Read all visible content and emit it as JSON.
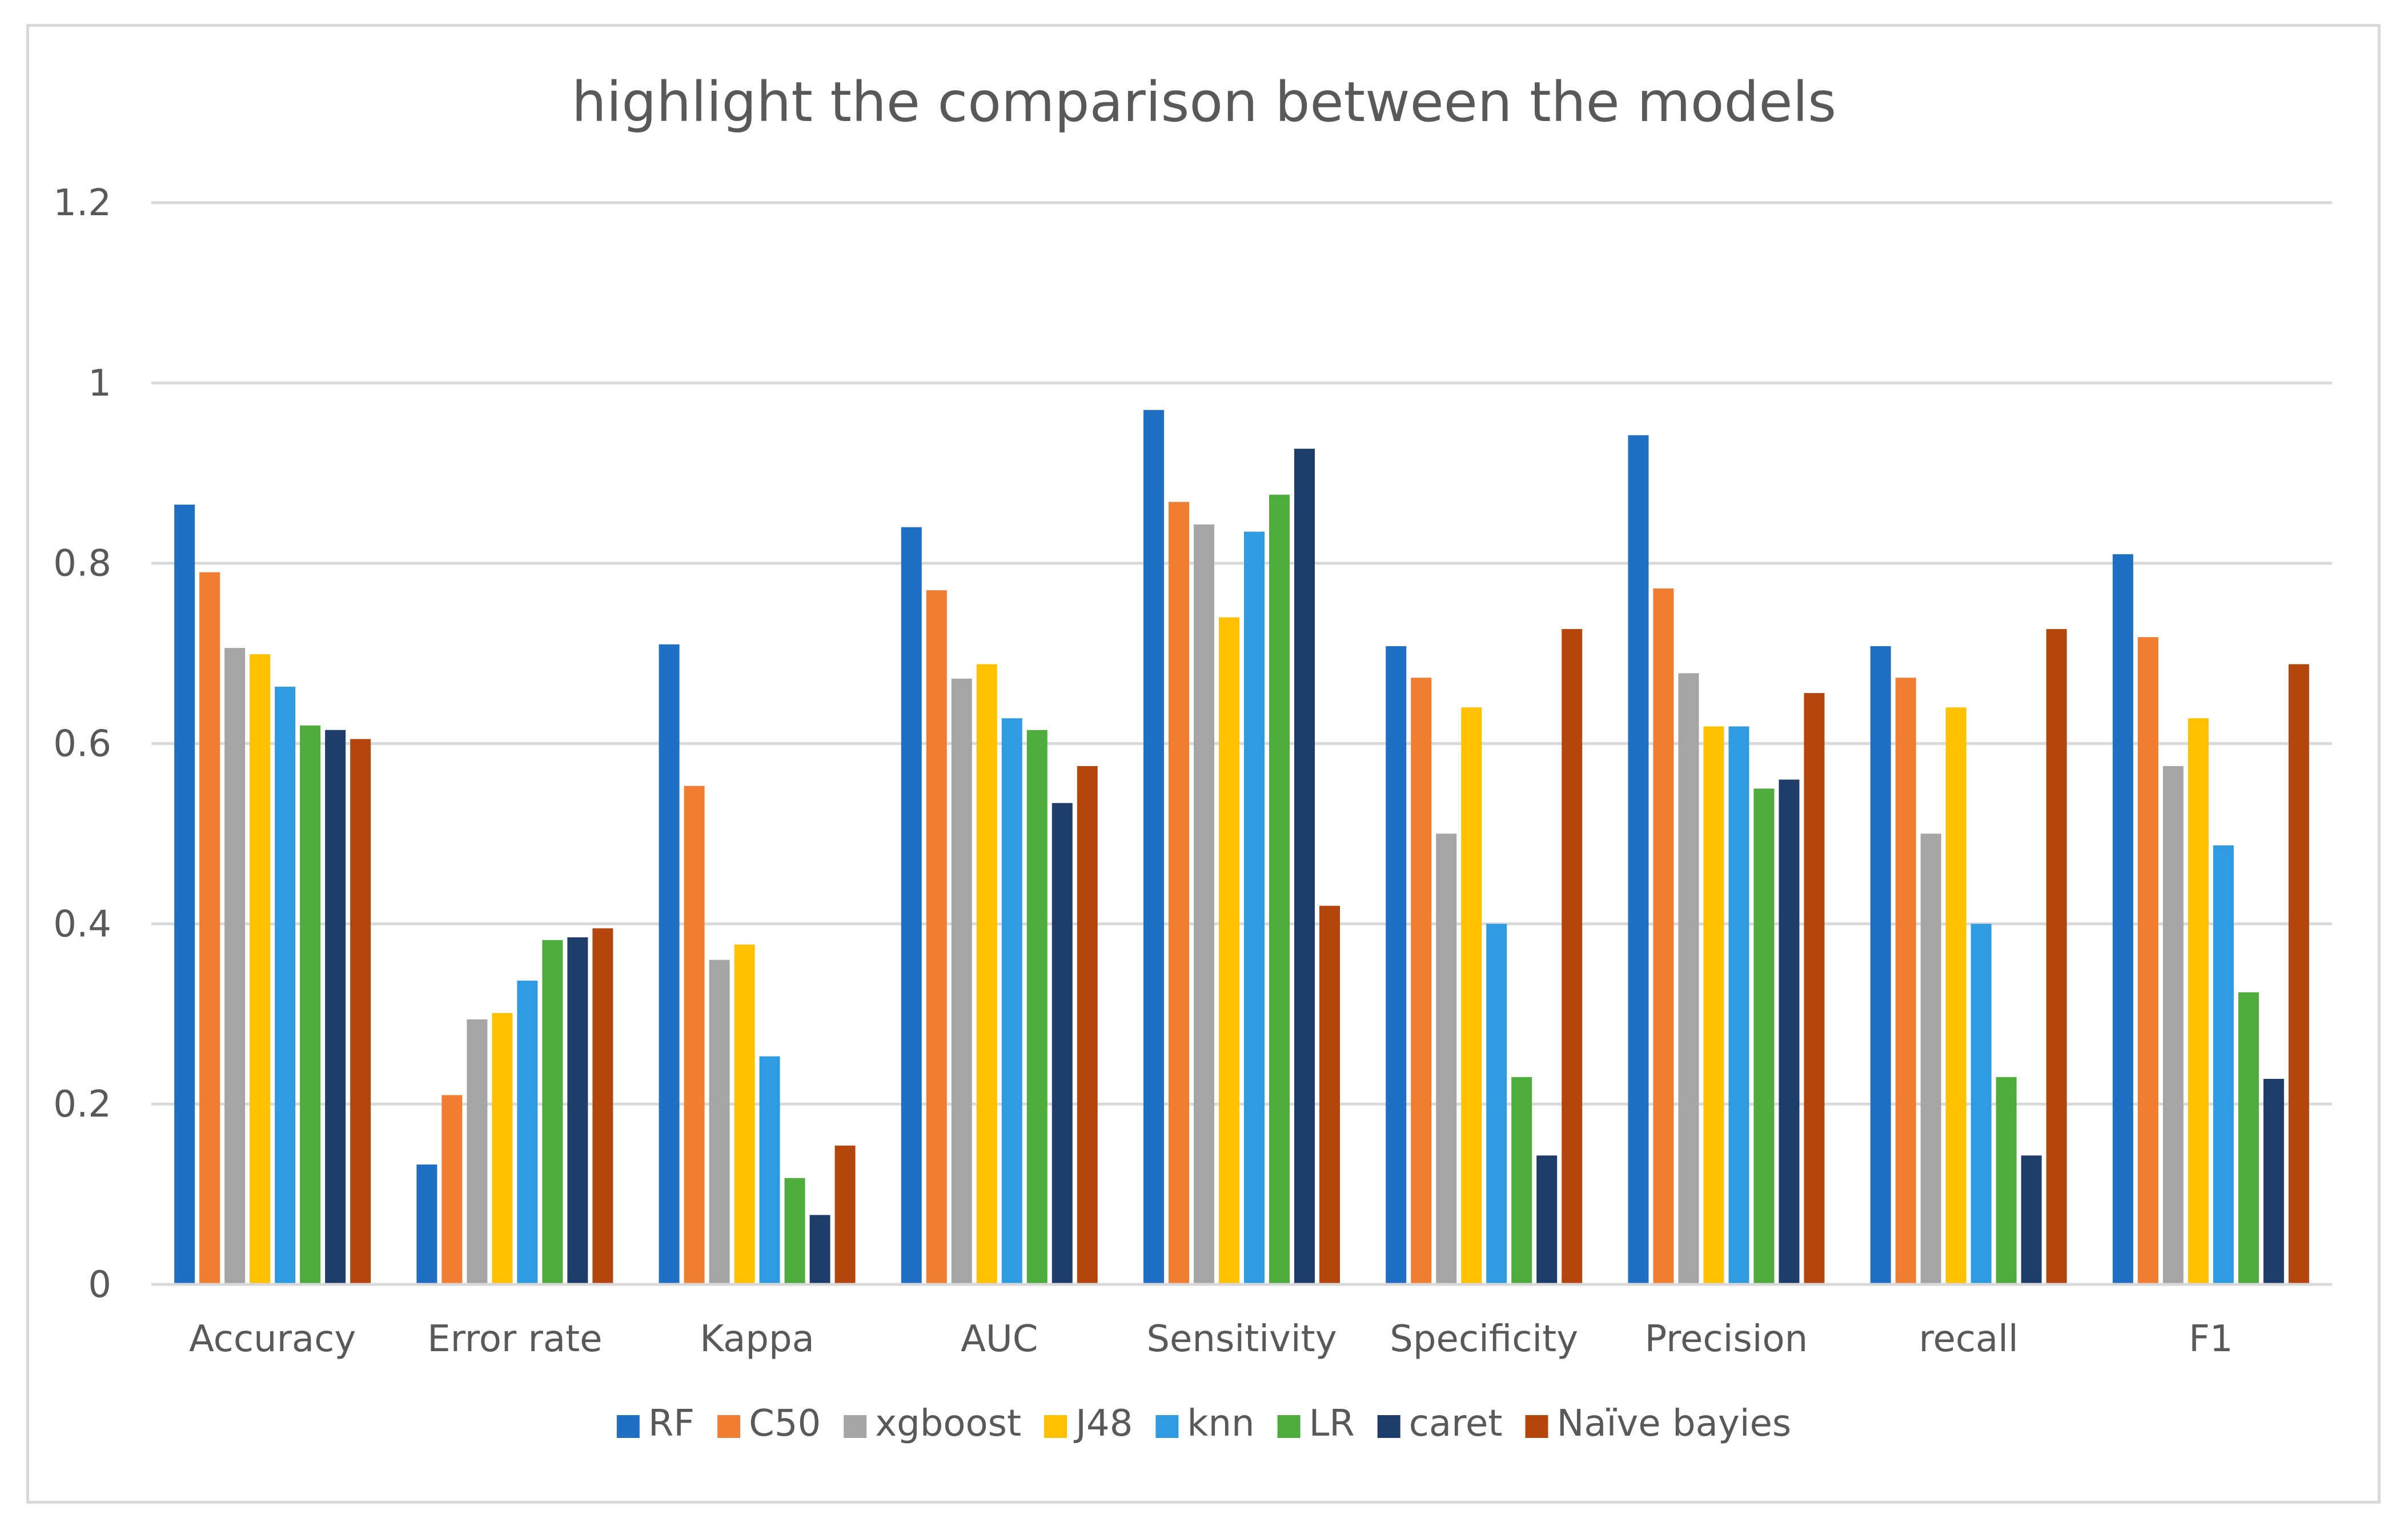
{
  "chart_data": {
    "type": "bar",
    "title": "highlight the comparison between the models",
    "xlabel": "",
    "ylabel": "",
    "ylim": [
      0,
      1.2
    ],
    "yticks": [
      0,
      0.2,
      0.4,
      0.6,
      0.8,
      1,
      1.2
    ],
    "ytick_labels": [
      "0",
      "0.2",
      "0.4",
      "0.6",
      "0.8",
      "1",
      "1.2"
    ],
    "grid": true,
    "legend_position": "bottom",
    "categories": [
      "Accuracy",
      "Error rate",
      "Kappa",
      "AUC",
      "Sensitivity",
      "Specificity",
      "Precision",
      "recall",
      "F1"
    ],
    "series": [
      {
        "name": "RF",
        "color": "#1f6fc5",
        "values": [
          0.865,
          0.133,
          0.71,
          0.84,
          0.97,
          0.708,
          0.942,
          0.708,
          0.81
        ]
      },
      {
        "name": "C50",
        "color": "#f07d32",
        "values": [
          0.79,
          0.21,
          0.553,
          0.77,
          0.868,
          0.673,
          0.772,
          0.673,
          0.718
        ]
      },
      {
        "name": "xgboost",
        "color": "#a5a5a5",
        "values": [
          0.706,
          0.294,
          0.36,
          0.672,
          0.843,
          0.5,
          0.678,
          0.5,
          0.575
        ]
      },
      {
        "name": "J48",
        "color": "#ffc000",
        "values": [
          0.699,
          0.301,
          0.377,
          0.688,
          0.74,
          0.64,
          0.619,
          0.64,
          0.628
        ]
      },
      {
        "name": "knn",
        "color": "#2f9be0",
        "values": [
          0.663,
          0.337,
          0.253,
          0.628,
          0.835,
          0.4,
          0.619,
          0.4,
          0.487
        ]
      },
      {
        "name": "LR",
        "color": "#4eac3c",
        "values": [
          0.62,
          0.382,
          0.118,
          0.615,
          0.876,
          0.23,
          0.55,
          0.23,
          0.324
        ]
      },
      {
        "name": "caret",
        "color": "#1f3d6b",
        "values": [
          0.615,
          0.385,
          0.077,
          0.534,
          0.927,
          0.143,
          0.56,
          0.143,
          0.228
        ]
      },
      {
        "name": "Naïve bayies",
        "color": "#b5460e",
        "values": [
          0.605,
          0.395,
          0.154,
          0.575,
          0.42,
          0.727,
          0.656,
          0.727,
          0.688
        ]
      }
    ]
  }
}
